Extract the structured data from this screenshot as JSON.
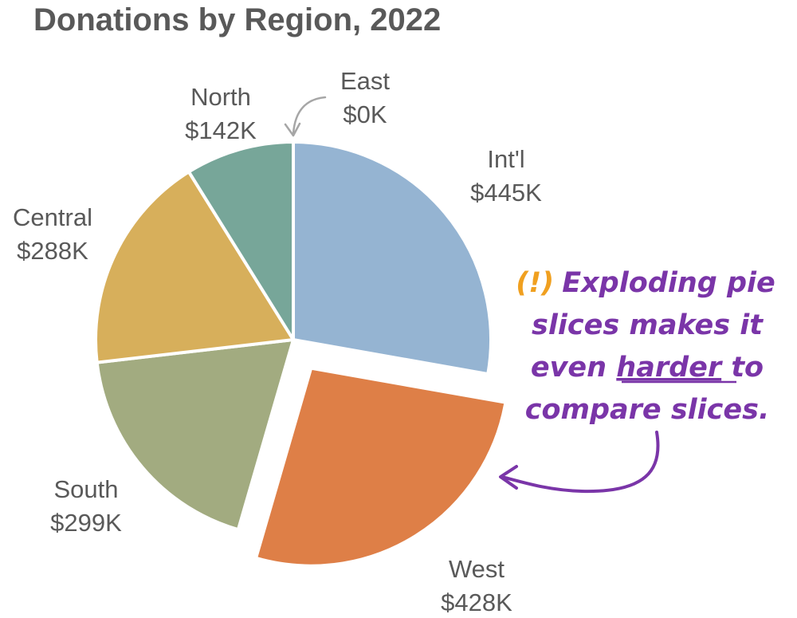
{
  "chart_data": {
    "type": "pie",
    "title": "Donations by Region, 2022",
    "slices": [
      {
        "label": "Int'l",
        "value_label": "$445K",
        "value": 445,
        "color": "#95B4D2",
        "exploded": false
      },
      {
        "label": "West",
        "value_label": "$428K",
        "value": 428,
        "color": "#DE7F47",
        "exploded": true
      },
      {
        "label": "South",
        "value_label": "$299K",
        "value": 299,
        "color": "#A2AB80",
        "exploded": false
      },
      {
        "label": "Central",
        "value_label": "$288K",
        "value": 288,
        "color": "#D7AF5B",
        "exploded": false
      },
      {
        "label": "North",
        "value_label": "$142K",
        "value": 142,
        "color": "#77A699",
        "exploded": false
      },
      {
        "label": "East",
        "value_label": "$0K",
        "value": 0,
        "color": "#BFBFBF",
        "exploded": false
      }
    ]
  },
  "annotation": {
    "marker": "(!)",
    "lines": [
      "Exploding pie",
      "slices makes it",
      "even",
      "harder",
      "to",
      "compare slices."
    ],
    "marker_color": "#F0A020",
    "text_color": "#7A35A8"
  },
  "colors": {
    "title": "#595959",
    "labels": "#595959",
    "east_arrow": "#A6A6A6"
  }
}
